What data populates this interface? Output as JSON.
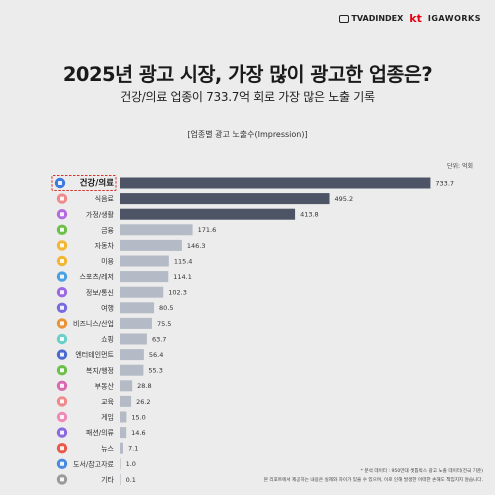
{
  "header": {
    "logo_tvadindex": "TVADINDEX",
    "logo_kt": "kt",
    "logo_igaworks": "IGAWORKS"
  },
  "title": "2025년 광고 시장, 가장 많이 광고한 업종은?",
  "subtitle": "건강/의료 업종이 733.7억 회로 가장 많은 노출 기록",
  "colors": {
    "bar_primary": "#4d5466",
    "bar_secondary": "#b5bbc6",
    "highlight_border": "#d9302a",
    "background": "#ececec"
  },
  "chart_data": {
    "type": "bar",
    "orientation": "horizontal",
    "title": "[업종별 광고 노출수(Impression)]",
    "unit": "단위: 억회",
    "categories": [
      "건강/의료",
      "식음료",
      "가정/생활",
      "금융",
      "자동차",
      "미용",
      "스포츠/레저",
      "정보/통신",
      "여행",
      "비즈니스/산업",
      "쇼핑",
      "엔터테인먼트",
      "복지/행정",
      "부동산",
      "교육",
      "게임",
      "패션/의류",
      "뉴스",
      "도서/참고자료",
      "기타"
    ],
    "values": [
      733.7,
      495.2,
      413.8,
      171.6,
      146.3,
      115.4,
      114.1,
      102.3,
      80.5,
      75.5,
      63.7,
      56.4,
      55.3,
      28.8,
      26.2,
      15.0,
      14.6,
      7.1,
      1.0,
      0.1
    ],
    "value_labels": [
      "733.7",
      "495.2",
      "413.8",
      "171.6",
      "146.3",
      "115.4",
      "114.1",
      "102.3",
      "80.5",
      "75.5",
      "63.7",
      "56.4",
      "55.3",
      "28.8",
      "26.2",
      "15.0",
      "14.6",
      "7.1",
      "1.0",
      "0.1"
    ],
    "icons": [
      "health-icon",
      "food-icon",
      "home-icon",
      "finance-icon",
      "car-icon",
      "beauty-icon",
      "sports-icon",
      "telecom-icon",
      "travel-icon",
      "business-icon",
      "shopping-icon",
      "entertainment-icon",
      "welfare-icon",
      "realestate-icon",
      "education-icon",
      "game-icon",
      "fashion-icon",
      "news-icon",
      "books-icon",
      "etc-icon"
    ],
    "icon_colors": [
      "#3d7be0",
      "#f08a8a",
      "#b46be0",
      "#6cc04a",
      "#f2b632",
      "#f2b632",
      "#4aa0e0",
      "#9b6ae0",
      "#7a6ae0",
      "#e8953a",
      "#6ad0c8",
      "#4a6ad0",
      "#6cc04a",
      "#d86ab0",
      "#f08a8a",
      "#f08ab8",
      "#8a6ae0",
      "#e85a4a",
      "#4a8ae0",
      "#9a9a9a"
    ],
    "highlight_index": 0,
    "xlim": [
      0,
      780
    ]
  },
  "footnotes": [
    "* 분석 데이터 : 950만대 셋톱박스 광고 노출 데이터(전국 기준)",
    "본 리포트에서 제공하는 내용은 실제와 차이가 있을 수 있으며, 이로 인해 발생한 어떠한 손해도 책임지지 않습니다."
  ]
}
